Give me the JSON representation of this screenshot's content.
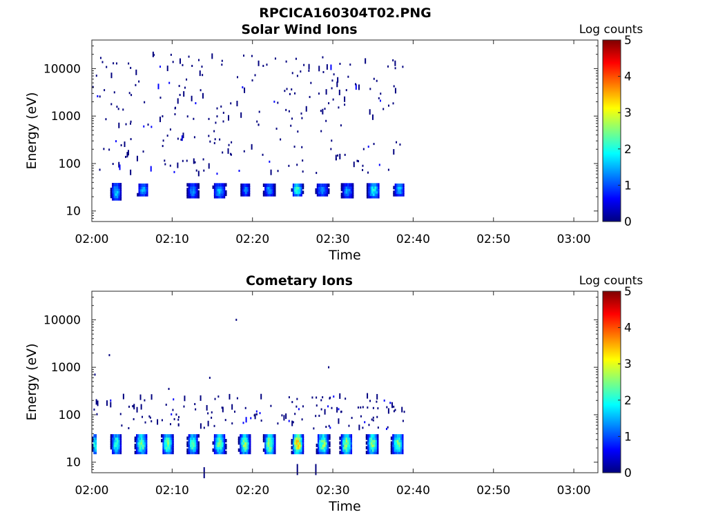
{
  "figure_title": "RPCICA160304T02.PNG",
  "colormap": [
    "#00007f",
    "#0000ff",
    "#007fff",
    "#00ffff",
    "#7fff7f",
    "#ffff00",
    "#ff7f00",
    "#ff0000",
    "#7f0000"
  ],
  "chart_data": [
    {
      "type": "heatmap",
      "title": "Solar Wind Ions",
      "xlabel": "Time",
      "ylabel": "Energy (eV)",
      "x_scale": "time",
      "xlim": [
        "02:00",
        "03:03"
      ],
      "x_ticks": [
        "02:00",
        "02:10",
        "02:20",
        "02:30",
        "02:40",
        "02:50",
        "03:00"
      ],
      "y_scale": "log",
      "ylim": [
        6,
        40000
      ],
      "y_ticks": [
        10,
        100,
        1000,
        10000
      ],
      "y_tick_labels": [
        "10",
        "100",
        "1000",
        "10000"
      ],
      "colorbar": {
        "label": "Log counts",
        "range": [
          0,
          5
        ],
        "ticks": [
          "0",
          "1",
          "2",
          "3",
          "4",
          "5"
        ]
      },
      "data_end": "02:39",
      "blocks": [
        {
          "t_start": 2.3,
          "t_end": 3.6,
          "e_low": 18,
          "e_high": 36,
          "max": 1.8
        },
        {
          "t_start": 5.6,
          "t_end": 7.0,
          "e_low": 22,
          "e_high": 36,
          "max": 1.7
        },
        {
          "t_start": 11.8,
          "t_end": 13.2,
          "e_low": 20,
          "e_high": 36,
          "max": 1.5
        },
        {
          "t_start": 15.0,
          "t_end": 16.6,
          "e_low": 20,
          "e_high": 36,
          "max": 1.7
        },
        {
          "t_start": 18.5,
          "t_end": 19.6,
          "e_low": 22,
          "e_high": 36,
          "max": 1.4
        },
        {
          "t_start": 21.3,
          "t_end": 22.7,
          "e_low": 22,
          "e_high": 36,
          "max": 1.6
        },
        {
          "t_start": 24.8,
          "t_end": 26.2,
          "e_low": 22,
          "e_high": 38,
          "max": 2.4
        },
        {
          "t_start": 27.8,
          "t_end": 29.4,
          "e_low": 22,
          "e_high": 36,
          "max": 1.6
        },
        {
          "t_start": 31.0,
          "t_end": 32.5,
          "e_low": 20,
          "e_high": 36,
          "max": 1.5
        },
        {
          "t_start": 34.2,
          "t_end": 35.8,
          "e_low": 20,
          "e_high": 38,
          "max": 2.2
        },
        {
          "t_start": 37.5,
          "t_end": 38.9,
          "e_low": 22,
          "e_high": 38,
          "max": 1.7
        }
      ],
      "scatter_energy_range": [
        60,
        20000
      ],
      "scatter_count": 260
    },
    {
      "type": "heatmap",
      "title": "Cometary Ions",
      "xlabel": "Time",
      "ylabel": "Energy (eV)",
      "x_scale": "time",
      "xlim": [
        "02:00",
        "03:03"
      ],
      "x_ticks": [
        "02:00",
        "02:10",
        "02:20",
        "02:30",
        "02:40",
        "02:50",
        "03:00"
      ],
      "y_scale": "log",
      "ylim": [
        6,
        40000
      ],
      "y_ticks": [
        10,
        100,
        1000,
        10000
      ],
      "y_tick_labels": [
        "10",
        "100",
        "1000",
        "10000"
      ],
      "colorbar": {
        "label": "Log counts",
        "range": [
          0,
          5
        ],
        "ticks": [
          "0",
          "1",
          "2",
          "3",
          "4",
          "5"
        ]
      },
      "data_end": "02:39",
      "blocks": [
        {
          "t_start": 0.0,
          "t_end": 0.6,
          "e_low": 16,
          "e_high": 38,
          "max": 2.3
        },
        {
          "t_start": 2.3,
          "t_end": 3.6,
          "e_low": 16,
          "e_high": 38,
          "max": 2.4
        },
        {
          "t_start": 5.3,
          "t_end": 6.9,
          "e_low": 16,
          "e_high": 38,
          "max": 2.6
        },
        {
          "t_start": 8.6,
          "t_end": 10.1,
          "e_low": 16,
          "e_high": 38,
          "max": 2.6
        },
        {
          "t_start": 11.8,
          "t_end": 13.2,
          "e_low": 16,
          "e_high": 38,
          "max": 2.5
        },
        {
          "t_start": 15.0,
          "t_end": 16.6,
          "e_low": 16,
          "e_high": 38,
          "max": 2.6
        },
        {
          "t_start": 18.2,
          "t_end": 19.7,
          "e_low": 16,
          "e_high": 38,
          "max": 2.7
        },
        {
          "t_start": 21.3,
          "t_end": 22.8,
          "e_low": 16,
          "e_high": 38,
          "max": 2.9
        },
        {
          "t_start": 24.8,
          "t_end": 26.3,
          "e_low": 16,
          "e_high": 38,
          "max": 3.6
        },
        {
          "t_start": 27.9,
          "t_end": 29.5,
          "e_low": 16,
          "e_high": 38,
          "max": 2.8
        },
        {
          "t_start": 30.8,
          "t_end": 32.4,
          "e_low": 16,
          "e_high": 38,
          "max": 2.8
        },
        {
          "t_start": 34.1,
          "t_end": 35.6,
          "e_low": 16,
          "e_high": 38,
          "max": 2.7
        },
        {
          "t_start": 37.2,
          "t_end": 38.8,
          "e_low": 16,
          "e_high": 38,
          "max": 2.6
        }
      ],
      "scatter_energy_range": [
        50,
        250
      ],
      "scatter_count": 150,
      "isolated_points": [
        {
          "t": 0.3,
          "e": 700
        },
        {
          "t": 2.1,
          "e": 1800
        },
        {
          "t": 9.5,
          "e": 350
        },
        {
          "t": 14.6,
          "e": 600
        },
        {
          "t": 17.9,
          "e": 10000
        },
        {
          "t": 29.4,
          "e": 1000
        },
        {
          "t": 25.5,
          "e": 7
        },
        {
          "t": 27.8,
          "e": 7
        },
        {
          "t": 13.9,
          "e": 6
        }
      ]
    }
  ]
}
